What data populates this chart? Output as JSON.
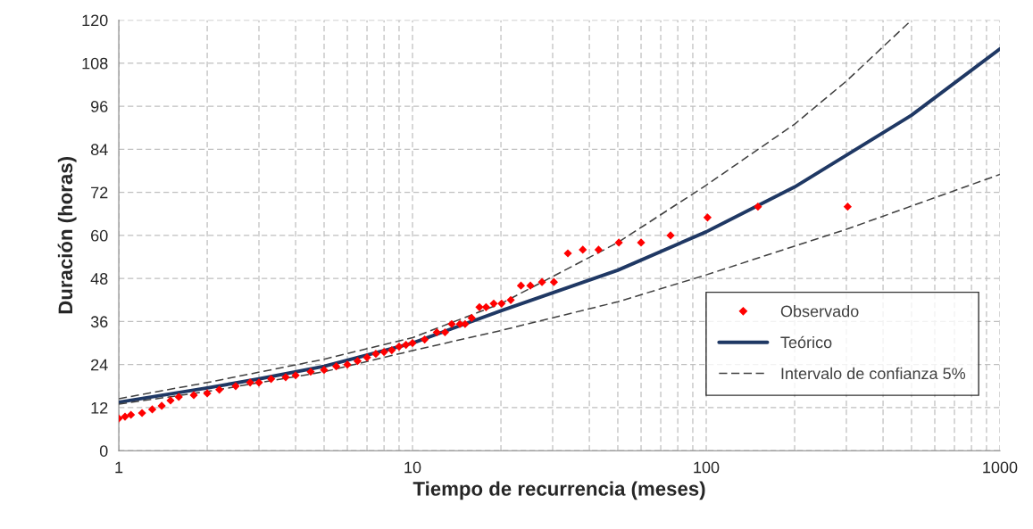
{
  "chart_data": {
    "type": "scatter",
    "xlabel": "Tiempo de recurrencia (meses)",
    "ylabel": "Duración (horas)",
    "log": "x",
    "grid": true,
    "legend": "bottom right",
    "xlim": [
      1,
      1000
    ],
    "xticks": [
      1,
      10,
      100,
      1000
    ],
    "ylim": [
      0,
      120
    ],
    "yticks": [
      0,
      12,
      24,
      36,
      48,
      60,
      72,
      84,
      96,
      108,
      120
    ],
    "series": [
      {
        "name": "Observado",
        "marker": "diamond",
        "color": "#ff0000",
        "x": [
          1,
          1.05,
          1.1,
          1.2,
          1.3,
          1.4,
          1.5,
          1.6,
          1.8,
          2,
          2.2,
          2.5,
          2.8,
          3,
          3.3,
          3.7,
          4,
          4.5,
          5,
          5.5,
          6,
          6.5,
          7,
          7.5,
          8,
          8.5,
          9,
          9.5,
          10,
          11,
          12.1,
          12.9,
          13.6,
          14.5,
          15.1,
          15.9,
          16.9,
          17.8,
          18.9,
          20.1,
          21.6,
          23.4,
          25.2,
          27.6,
          30.3,
          33.8,
          38,
          43,
          50.4,
          60,
          75.6,
          101,
          150,
          303
        ],
        "values": [
          9,
          9.5,
          10,
          10.5,
          11.5,
          12.5,
          14,
          15,
          15.5,
          16,
          17,
          18,
          19,
          19,
          20,
          20.5,
          21,
          22,
          22.5,
          23.5,
          24,
          25,
          26,
          27,
          27.5,
          28,
          29,
          29.5,
          30,
          31,
          33,
          33,
          35.3,
          35.3,
          35.3,
          37,
          40,
          40,
          41,
          41,
          42,
          46,
          46,
          47,
          47,
          55,
          56,
          56,
          58,
          58,
          60,
          65,
          68,
          68
        ]
      },
      {
        "name": "Teórico",
        "type": "line",
        "line_style": "solid",
        "color": "#1f3864",
        "x": [
          1,
          2,
          3,
          5,
          10,
          20,
          50,
          100,
          200,
          500,
          1000
        ],
        "values": [
          13.5,
          17.5,
          20,
          23.5,
          30,
          39,
          50.3,
          61,
          73.5,
          93.5,
          112
        ]
      },
      {
        "name": "Intervalo de confianza 5%",
        "type": "line",
        "line_style": "dashed",
        "color": "#404040",
        "x": [
          1,
          2,
          5,
          10,
          20,
          50,
          100,
          200,
          300,
          500
        ],
        "values": [
          14.5,
          19,
          25.5,
          31.5,
          41,
          58,
          74,
          91,
          103,
          120
        ]
      },
      {
        "type": "line",
        "line_style": "dashed",
        "color": "#404040",
        "x": [
          1,
          2,
          5,
          10,
          20,
          50,
          100,
          300,
          1000
        ],
        "values": [
          13,
          16.5,
          22,
          27.9,
          33.5,
          41.5,
          49,
          61.7,
          77
        ]
      }
    ]
  }
}
